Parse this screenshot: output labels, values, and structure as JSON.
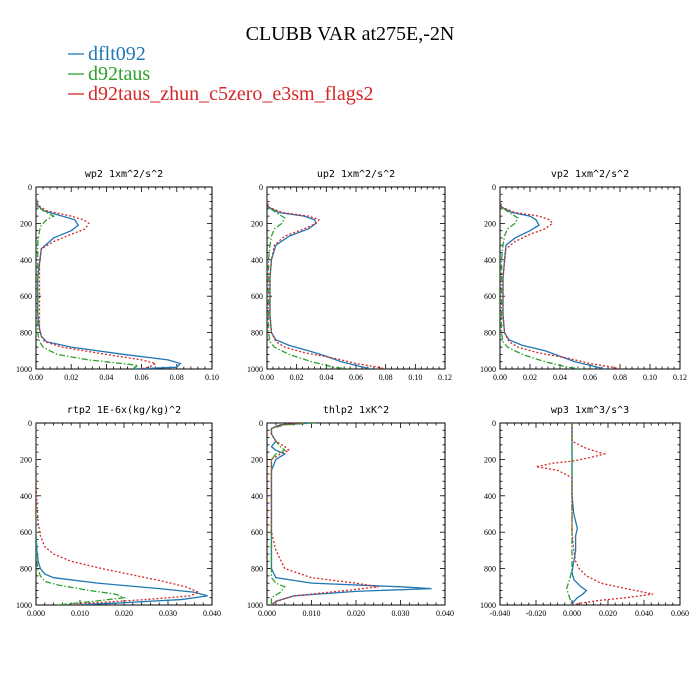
{
  "figure": {
    "title": "CLUBB VAR at275E,-2N"
  },
  "legend": [
    {
      "label": "dflt092",
      "color": "#1f77b4",
      "dash": "solid"
    },
    {
      "label": "d92taus",
      "color": "#2ca02c",
      "dash": "dashdot"
    },
    {
      "label": "d92taus_zhun_c5zero_e3sm_flags2",
      "color": "#d62728",
      "dash": "dotted"
    }
  ],
  "chart_data": [
    {
      "type": "line",
      "title": "wp2  1xm^2/s^2",
      "xlim": [
        0,
        0.1
      ],
      "ylim": [
        1000,
        0
      ],
      "xticks": [
        "0.00",
        "0.02",
        "0.04",
        "0.06",
        "0.08",
        "0.10"
      ],
      "xtick_values": [
        0,
        0.02,
        0.04,
        0.06,
        0.08,
        0.1
      ],
      "yticks": [
        "0",
        "200",
        "400",
        "600",
        "800",
        "1000"
      ],
      "ytick_values": [
        0,
        200,
        400,
        600,
        800,
        1000
      ],
      "series": [
        {
          "name": "dflt092",
          "y": [
            0,
            60,
            100,
            130,
            160,
            180,
            210,
            240,
            280,
            340,
            420,
            500,
            600,
            700,
            780,
            820,
            850,
            880,
            920,
            950,
            970,
            990,
            1000
          ],
          "x": [
            0,
            0,
            0.001,
            0.004,
            0.015,
            0.022,
            0.024,
            0.02,
            0.01,
            0.003,
            0.002,
            0.001,
            0.001,
            0.001,
            0.002,
            0.003,
            0.006,
            0.02,
            0.05,
            0.075,
            0.082,
            0.08,
            0.055
          ]
        },
        {
          "name": "d92taus",
          "y": [
            0,
            80,
            110,
            140,
            160,
            180,
            210,
            240,
            300,
            400,
            500,
            600,
            700,
            800,
            850,
            880,
            920,
            950,
            980,
            1000
          ],
          "x": [
            0,
            0,
            0.001,
            0.006,
            0.01,
            0.006,
            0.003,
            0.002,
            0.001,
            0.001,
            0.001,
            0.001,
            0.001,
            0.001,
            0.002,
            0.004,
            0.012,
            0.03,
            0.058,
            0.055
          ]
        },
        {
          "name": "d92taus_zhun_c5zero_e3sm_flags2",
          "y": [
            0,
            60,
            100,
            130,
            160,
            180,
            200,
            230,
            260,
            300,
            340,
            420,
            500,
            600,
            700,
            780,
            820,
            850,
            880,
            920,
            950,
            970,
            990,
            1000
          ],
          "x": [
            0,
            0,
            0.001,
            0.006,
            0.02,
            0.027,
            0.03,
            0.028,
            0.02,
            0.01,
            0.003,
            0.002,
            0.002,
            0.002,
            0.002,
            0.002,
            0.003,
            0.005,
            0.015,
            0.04,
            0.06,
            0.068,
            0.064,
            0.06
          ]
        }
      ]
    },
    {
      "type": "line",
      "title": "up2  1xm^2/s^2",
      "xlim": [
        0,
        0.12
      ],
      "ylim": [
        1000,
        0
      ],
      "xticks": [
        "0.00",
        "0.02",
        "0.04",
        "0.06",
        "0.08",
        "0.10",
        "0.12"
      ],
      "xtick_values": [
        0,
        0.02,
        0.04,
        0.06,
        0.08,
        0.1,
        0.12
      ],
      "yticks": [
        "0",
        "200",
        "400",
        "600",
        "800",
        "1000"
      ],
      "ytick_values": [
        0,
        200,
        400,
        600,
        800,
        1000
      ],
      "series": [
        {
          "name": "dflt092",
          "y": [
            0,
            80,
            110,
            140,
            160,
            180,
            200,
            230,
            270,
            320,
            400,
            500,
            600,
            700,
            800,
            840,
            870,
            900,
            930,
            960,
            980,
            1000
          ],
          "x": [
            0,
            0,
            0.001,
            0.008,
            0.025,
            0.032,
            0.033,
            0.028,
            0.015,
            0.006,
            0.003,
            0.002,
            0.002,
            0.002,
            0.003,
            0.006,
            0.015,
            0.028,
            0.04,
            0.05,
            0.06,
            0.07
          ]
        },
        {
          "name": "d92taus",
          "y": [
            0,
            80,
            110,
            140,
            170,
            200,
            230,
            270,
            320,
            400,
            500,
            600,
            700,
            800,
            850,
            880,
            920,
            960,
            990,
            1000
          ],
          "x": [
            0,
            0,
            0.001,
            0.006,
            0.012,
            0.01,
            0.005,
            0.003,
            0.002,
            0.001,
            0.001,
            0.001,
            0.001,
            0.001,
            0.002,
            0.005,
            0.015,
            0.03,
            0.045,
            0.055
          ]
        },
        {
          "name": "d92taus_zhun_c5zero_e3sm_flags2",
          "y": [
            0,
            80,
            110,
            140,
            160,
            180,
            200,
            230,
            270,
            320,
            400,
            500,
            600,
            700,
            800,
            850,
            880,
            910,
            940,
            970,
            990,
            1000
          ],
          "x": [
            0,
            0,
            0.001,
            0.01,
            0.028,
            0.035,
            0.033,
            0.025,
            0.012,
            0.005,
            0.003,
            0.002,
            0.002,
            0.002,
            0.003,
            0.006,
            0.012,
            0.025,
            0.045,
            0.06,
            0.075,
            0.08
          ]
        }
      ]
    },
    {
      "type": "line",
      "title": "vp2  1xm^2/s^2",
      "xlim": [
        0,
        0.12
      ],
      "ylim": [
        1000,
        0
      ],
      "xticks": [
        "0.00",
        "0.02",
        "0.04",
        "0.06",
        "0.08",
        "0.10",
        "0.12"
      ],
      "xtick_values": [
        0,
        0.02,
        0.04,
        0.06,
        0.08,
        0.1,
        0.12
      ],
      "yticks": [
        "0",
        "200",
        "400",
        "600",
        "800",
        "1000"
      ],
      "ytick_values": [
        0,
        200,
        400,
        600,
        800,
        1000
      ],
      "series": [
        {
          "name": "dflt092",
          "y": [
            0,
            80,
            110,
            140,
            160,
            180,
            210,
            240,
            280,
            320,
            400,
            500,
            600,
            700,
            800,
            840,
            870,
            900,
            930,
            960,
            980,
            1000
          ],
          "x": [
            0,
            0,
            0.001,
            0.008,
            0.02,
            0.024,
            0.026,
            0.02,
            0.01,
            0.004,
            0.003,
            0.002,
            0.002,
            0.002,
            0.003,
            0.006,
            0.015,
            0.03,
            0.04,
            0.05,
            0.06,
            0.07
          ]
        },
        {
          "name": "d92taus",
          "y": [
            0,
            80,
            110,
            140,
            170,
            200,
            230,
            270,
            320,
            400,
            500,
            600,
            700,
            800,
            850,
            880,
            920,
            960,
            990,
            1000
          ],
          "x": [
            0,
            0,
            0.001,
            0.006,
            0.012,
            0.01,
            0.005,
            0.003,
            0.002,
            0.001,
            0.001,
            0.001,
            0.001,
            0.001,
            0.002,
            0.005,
            0.015,
            0.03,
            0.045,
            0.055
          ]
        },
        {
          "name": "d92taus_zhun_c5zero_e3sm_flags2",
          "y": [
            0,
            80,
            110,
            140,
            160,
            180,
            200,
            230,
            260,
            300,
            340,
            420,
            500,
            600,
            700,
            800,
            850,
            880,
            910,
            940,
            970,
            990,
            1000
          ],
          "x": [
            0,
            0,
            0.001,
            0.01,
            0.026,
            0.033,
            0.035,
            0.03,
            0.02,
            0.01,
            0.004,
            0.003,
            0.002,
            0.002,
            0.002,
            0.003,
            0.006,
            0.012,
            0.025,
            0.045,
            0.06,
            0.075,
            0.08
          ]
        }
      ]
    },
    {
      "type": "line",
      "title": "rtp2  1E-6x(kg/kg)^2",
      "xlim": [
        0,
        0.04
      ],
      "ylim": [
        1000,
        0
      ],
      "xticks": [
        "0.000",
        "0.010",
        "0.020",
        "0.030",
        "0.040"
      ],
      "xtick_values": [
        0,
        0.01,
        0.02,
        0.03,
        0.04
      ],
      "yticks": [
        "0",
        "200",
        "400",
        "600",
        "800",
        "1000"
      ],
      "ytick_values": [
        0,
        200,
        400,
        600,
        800,
        1000
      ],
      "series": [
        {
          "name": "dflt092",
          "y": [
            0,
            300,
            500,
            600,
            700,
            760,
            800,
            830,
            850,
            880,
            910,
            930,
            950,
            970,
            990,
            1000
          ],
          "x": [
            0,
            0,
            0,
            0,
            0.0002,
            0.0005,
            0.001,
            0.002,
            0.004,
            0.014,
            0.028,
            0.036,
            0.039,
            0.033,
            0.018,
            0.008
          ]
        },
        {
          "name": "d92taus",
          "y": [
            0,
            300,
            500,
            600,
            700,
            760,
            800,
            840,
            870,
            890,
            920,
            940,
            960,
            980,
            1000
          ],
          "x": [
            0,
            0,
            0,
            0,
            0,
            0.0002,
            0.0004,
            0.001,
            0.002,
            0.005,
            0.012,
            0.018,
            0.02,
            0.013,
            0.005
          ]
        },
        {
          "name": "d92taus_zhun_c5zero_e3sm_flags2",
          "y": [
            0,
            300,
            450,
            550,
            620,
            680,
            720,
            760,
            800,
            840,
            870,
            900,
            930,
            950,
            970,
            990,
            1000
          ],
          "x": [
            0,
            0,
            0.0002,
            0.0005,
            0.001,
            0.002,
            0.004,
            0.008,
            0.015,
            0.023,
            0.029,
            0.034,
            0.037,
            0.035,
            0.025,
            0.012,
            0.008
          ]
        }
      ]
    },
    {
      "type": "line",
      "title": "thlp2  1xK^2",
      "xlim": [
        0,
        0.04
      ],
      "ylim": [
        1000,
        0
      ],
      "xticks": [
        "0.000",
        "0.010",
        "0.020",
        "0.030",
        "0.040"
      ],
      "xtick_values": [
        0,
        0.01,
        0.02,
        0.03,
        0.04
      ],
      "yticks": [
        "0",
        "200",
        "400",
        "600",
        "800",
        "1000"
      ],
      "ytick_values": [
        0,
        200,
        400,
        600,
        800,
        1000
      ],
      "series": [
        {
          "name": "dflt092",
          "y": [
            0,
            10,
            30,
            60,
            100,
            130,
            150,
            170,
            200,
            260,
            400,
            600,
            800,
            850,
            880,
            900,
            910,
            925,
            950,
            980,
            1000
          ],
          "x": [
            0.01,
            0.003,
            0.001,
            0.001,
            0.002,
            0.001,
            0.002,
            0.004,
            0.002,
            0.001,
            0.001,
            0.001,
            0.001,
            0.002,
            0.01,
            0.03,
            0.037,
            0.02,
            0.006,
            0.002,
            0.001
          ]
        },
        {
          "name": "d92taus",
          "y": [
            0,
            10,
            30,
            60,
            100,
            130,
            150,
            170,
            200,
            260,
            400,
            600,
            800,
            850,
            880,
            900,
            930,
            960,
            990,
            1000
          ],
          "x": [
            0.011,
            0.004,
            0.001,
            0.001,
            0.002,
            0.003,
            0.004,
            0.002,
            0.001,
            0.001,
            0.001,
            0.001,
            0.001,
            0.001,
            0.002,
            0.004,
            0.003,
            0.001,
            0.001,
            0.001
          ]
        },
        {
          "name": "d92taus_zhun_c5zero_e3sm_flags2",
          "y": [
            0,
            10,
            30,
            60,
            100,
            130,
            150,
            170,
            200,
            260,
            400,
            600,
            700,
            800,
            850,
            880,
            900,
            920,
            950,
            980,
            1000
          ],
          "x": [
            0.008,
            0.003,
            0.001,
            0.001,
            0.002,
            0.004,
            0.005,
            0.003,
            0.001,
            0.001,
            0.001,
            0.001,
            0.002,
            0.004,
            0.01,
            0.02,
            0.025,
            0.018,
            0.006,
            0.002,
            0.001
          ]
        }
      ]
    },
    {
      "type": "line",
      "title": "wp3  1xm^3/s^3",
      "xlim": [
        -0.04,
        0.06
      ],
      "ylim": [
        1000,
        0
      ],
      "xticks": [
        "-0.040",
        "-0.020",
        "0.000",
        "0.020",
        "0.040",
        "0.060"
      ],
      "xtick_values": [
        -0.04,
        -0.02,
        0,
        0.02,
        0.04,
        0.06
      ],
      "yticks": [
        "0",
        "200",
        "400",
        "600",
        "800",
        "1000"
      ],
      "ytick_values": [
        0,
        200,
        400,
        600,
        800,
        1000
      ],
      "series": [
        {
          "name": "dflt092",
          "y": [
            0,
            100,
            200,
            300,
            400,
            450,
            500,
            540,
            580,
            620,
            700,
            760,
            820,
            860,
            880,
            900,
            920,
            940,
            960,
            980,
            1000
          ],
          "x": [
            0,
            0,
            0,
            0,
            0,
            0.0005,
            0.001,
            0.002,
            0.003,
            0.002,
            0.002,
            0.001,
            0,
            0.001,
            0.003,
            0.005,
            0.008,
            0.006,
            0.003,
            0.001,
            0
          ]
        },
        {
          "name": "d92taus",
          "y": [
            0,
            100,
            200,
            300,
            400,
            500,
            600,
            700,
            800,
            850,
            880,
            910,
            940,
            970,
            1000
          ],
          "x": [
            0,
            0,
            0,
            0,
            0,
            0,
            0,
            0,
            0,
            -0.001,
            -0.002,
            -0.003,
            -0.002,
            -0.001,
            0
          ]
        },
        {
          "name": "d92taus_zhun_c5zero_e3sm_flags2",
          "y": [
            0,
            100,
            140,
            170,
            190,
            210,
            220,
            240,
            260,
            300,
            400,
            500,
            600,
            700,
            760,
            800,
            840,
            880,
            910,
            940,
            960,
            975,
            990,
            1000
          ],
          "x": [
            0,
            0,
            0.008,
            0.018,
            0.01,
            0,
            -0.01,
            -0.02,
            -0.008,
            0,
            0,
            0,
            0,
            0.001,
            0.002,
            0.004,
            0.008,
            0.016,
            0.03,
            0.045,
            0.03,
            0.015,
            0.005,
            0
          ]
        }
      ]
    }
  ]
}
